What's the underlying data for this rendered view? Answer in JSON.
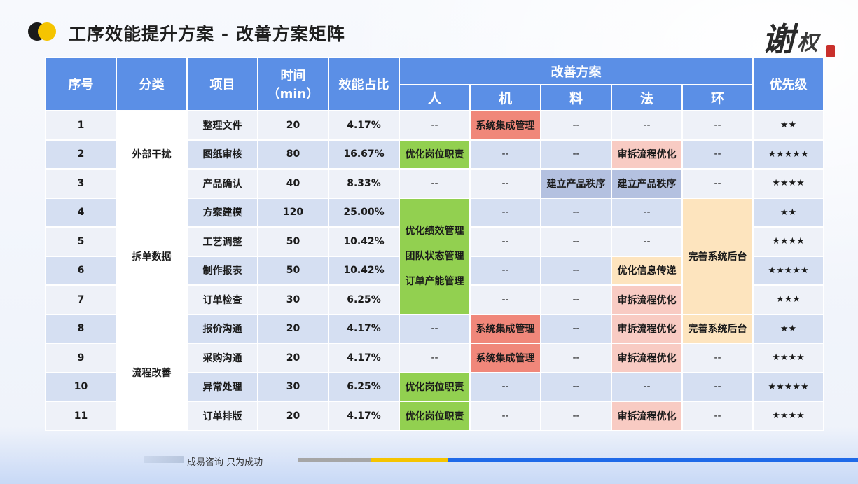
{
  "header": {
    "title": "工序效能提升方案 - 改善方案矩阵",
    "logo_icon": "two-overlapping-circles-icon",
    "seal_chars": [
      "谢",
      "权"
    ]
  },
  "colors": {
    "header_blue": "#5b8fe6",
    "green": "#92d050",
    "salmon": "#f0877a",
    "pink": "#f8cbc3",
    "lavender": "#b4c1e0",
    "peach": "#fde4be",
    "row_light": "#eef1f8",
    "row_dark": "#d5dff2"
  },
  "table": {
    "headers": {
      "seq": "序号",
      "category": "分类",
      "item": "项目",
      "time_line1": "时间",
      "time_line2": "（min）",
      "ratio": "效能占比",
      "plan_group": "改善方案",
      "people": "人",
      "machine": "机",
      "material": "料",
      "method": "法",
      "environment": "环",
      "priority": "优先级"
    },
    "categories": [
      "外部干扰",
      "拆单数据",
      "流程改善"
    ],
    "merged": {
      "people_rows_4_7_line1": "优化绩效管理",
      "people_rows_4_7_line2": "团队状态管理",
      "people_rows_4_7_line3": "订单产能管理",
      "env_rows_4_7": "完善系统后台"
    },
    "rows": [
      {
        "seq": "1",
        "item": "整理文件",
        "time": "20",
        "ratio": "4.17%",
        "people": "--",
        "machine": "系统集成管理",
        "material": "--",
        "method": "--",
        "env": "--",
        "priority": "★★"
      },
      {
        "seq": "2",
        "item": "图纸审核",
        "time": "80",
        "ratio": "16.67%",
        "people": "优化岗位职责",
        "machine": "--",
        "material": "--",
        "method": "审拆流程优化",
        "env": "--",
        "priority": "★★★★★"
      },
      {
        "seq": "3",
        "item": "产品确认",
        "time": "40",
        "ratio": "8.33%",
        "people": "--",
        "machine": "--",
        "material": "建立产品秩序",
        "method": "建立产品秩序",
        "env": "--",
        "priority": "★★★★"
      },
      {
        "seq": "4",
        "item": "方案建模",
        "time": "120",
        "ratio": "25.00%",
        "machine": "--",
        "material": "--",
        "method": "--",
        "priority": "★★"
      },
      {
        "seq": "5",
        "item": "工艺调整",
        "time": "50",
        "ratio": "10.42%",
        "machine": "--",
        "material": "--",
        "method": "--",
        "priority": "★★★★"
      },
      {
        "seq": "6",
        "item": "制作报表",
        "time": "50",
        "ratio": "10.42%",
        "machine": "--",
        "material": "--",
        "method": "优化信息传递",
        "priority": "★★★★★"
      },
      {
        "seq": "7",
        "item": "订单检查",
        "time": "30",
        "ratio": "6.25%",
        "machine": "--",
        "material": "--",
        "method": "审拆流程优化",
        "priority": "★★★"
      },
      {
        "seq": "8",
        "item": "报价沟通",
        "time": "20",
        "ratio": "4.17%",
        "people": "--",
        "machine": "系统集成管理",
        "material": "--",
        "method": "审拆流程优化",
        "env": "完善系统后台",
        "priority": "★★"
      },
      {
        "seq": "9",
        "item": "采购沟通",
        "time": "20",
        "ratio": "4.17%",
        "people": "--",
        "machine": "系统集成管理",
        "material": "--",
        "method": "审拆流程优化",
        "env": "--",
        "priority": "★★★★"
      },
      {
        "seq": "10",
        "item": "异常处理",
        "time": "30",
        "ratio": "6.25%",
        "people": "优化岗位职责",
        "machine": "--",
        "material": "--",
        "method": "--",
        "env": "--",
        "priority": "★★★★★"
      },
      {
        "seq": "11",
        "item": "订单排版",
        "time": "20",
        "ratio": "4.17%",
        "people": "优化岗位职责",
        "machine": "--",
        "material": "--",
        "method": "审拆流程优化",
        "env": "--",
        "priority": "★★★★"
      }
    ]
  },
  "footer": {
    "slogan": "成易咨询  只为成功"
  }
}
